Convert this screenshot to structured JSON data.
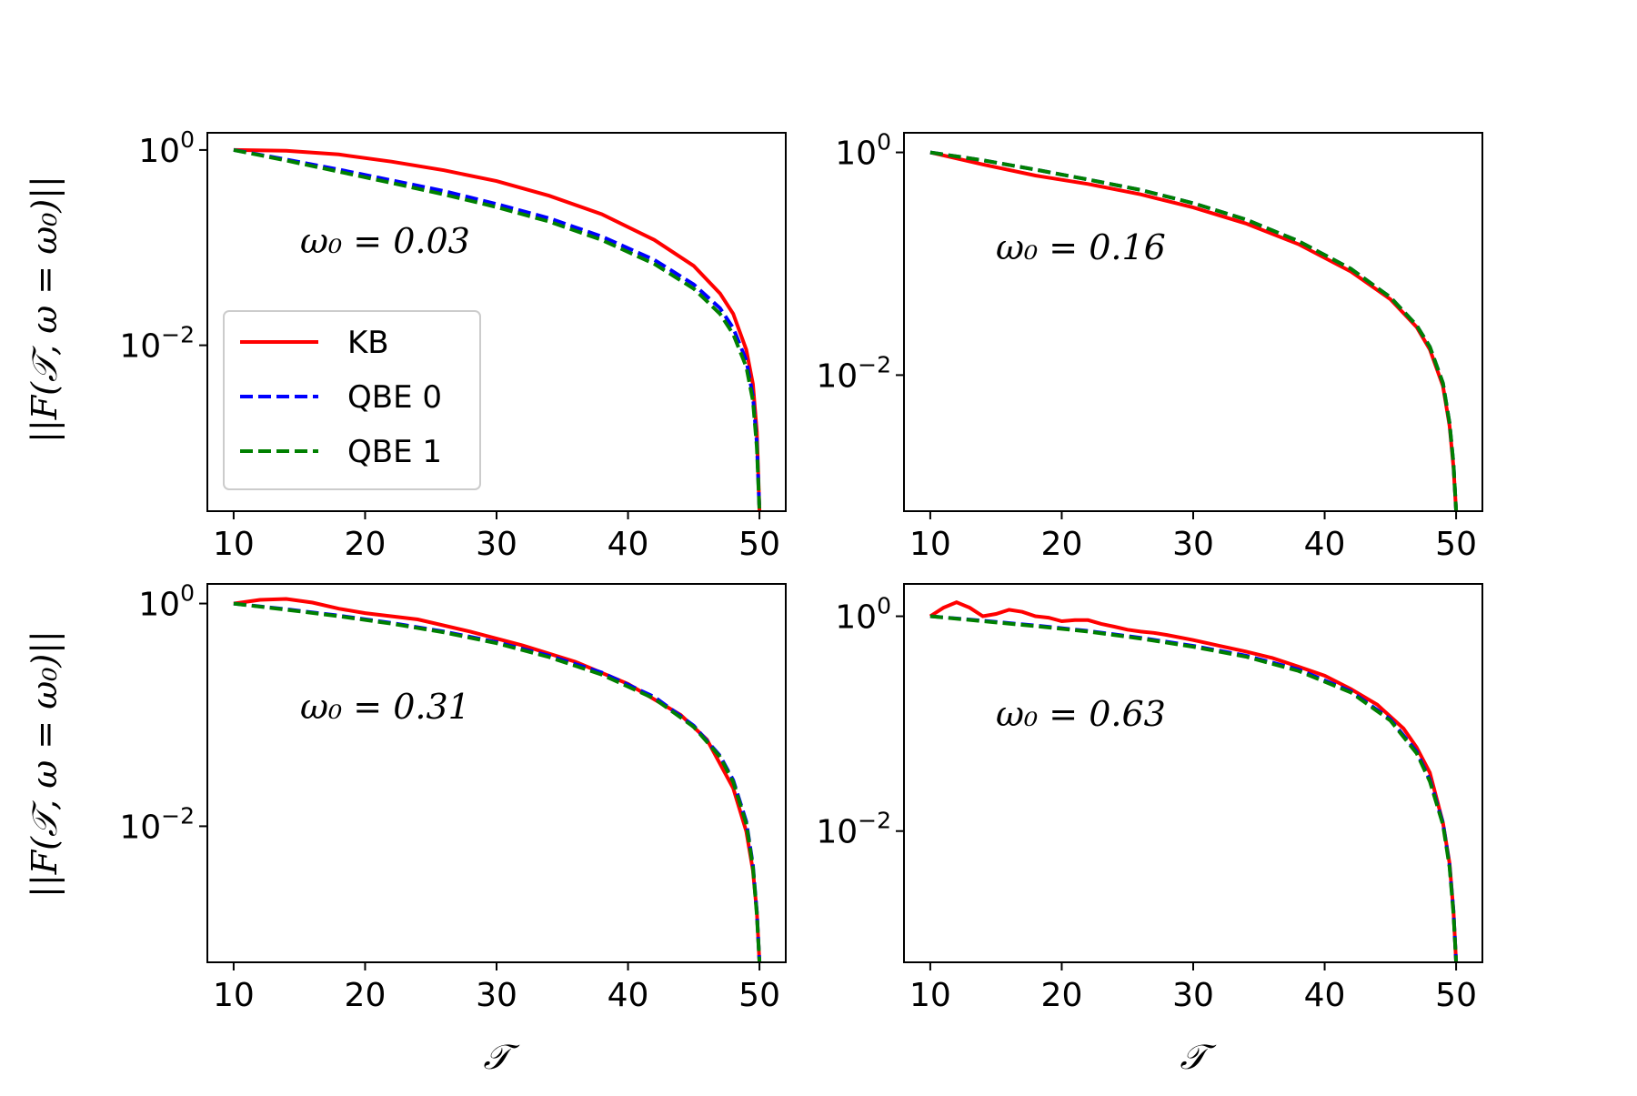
{
  "figure": {
    "ylabel_left": "||F(𝒯, ω = ω₀)||",
    "xlabel_bottom": "𝒯",
    "legend": [
      {
        "label": "KB",
        "color": "#ff0000",
        "dash": "solid"
      },
      {
        "label": "QBE 0",
        "color": "#0000ff",
        "dash": "dashed"
      },
      {
        "label": "QBE 1",
        "color": "#008000",
        "dash": "dashed"
      }
    ]
  },
  "chart_data": [
    {
      "type": "line",
      "panel": "top-left",
      "annotation": "ω₀ = 0.03",
      "x_scale": "linear",
      "y_scale": "log",
      "xlim": [
        8,
        52
      ],
      "ylim": [
        0.0002,
        1.5
      ],
      "x_ticks": [
        10,
        20,
        30,
        40,
        50
      ],
      "y_ticks": [
        {
          "value": 1,
          "base": "10",
          "exp": "0"
        },
        {
          "value": 0.01,
          "base": "10",
          "exp": "−2"
        }
      ],
      "legend_position": "lower-left",
      "series": [
        {
          "name": "KB",
          "color": "#ff0000",
          "dash": "solid",
          "x": [
            10,
            14,
            18,
            22,
            26,
            30,
            34,
            38,
            42,
            45,
            47,
            48,
            49,
            49.5,
            49.8,
            50
          ],
          "y": [
            1,
            0.98,
            0.9,
            0.76,
            0.62,
            0.48,
            0.34,
            0.22,
            0.12,
            0.065,
            0.034,
            0.021,
            0.009,
            0.004,
            0.0013,
            0.0002
          ]
        },
        {
          "name": "QBE 0",
          "color": "#0000ff",
          "dash": "dashed",
          "x": [
            10,
            14,
            18,
            22,
            26,
            30,
            34,
            38,
            42,
            45,
            47,
            48,
            49,
            49.5,
            49.8,
            50
          ],
          "y": [
            1,
            0.8,
            0.63,
            0.49,
            0.38,
            0.28,
            0.2,
            0.13,
            0.075,
            0.042,
            0.024,
            0.015,
            0.007,
            0.003,
            0.001,
            0.0002
          ]
        },
        {
          "name": "QBE 1",
          "color": "#008000",
          "dash": "dashed",
          "x": [
            10,
            14,
            18,
            22,
            26,
            30,
            34,
            38,
            42,
            45,
            47,
            48,
            49,
            49.5,
            49.8,
            50
          ],
          "y": [
            1,
            0.78,
            0.6,
            0.46,
            0.35,
            0.26,
            0.185,
            0.12,
            0.068,
            0.038,
            0.021,
            0.013,
            0.006,
            0.0027,
            0.0009,
            0.0002
          ]
        }
      ]
    },
    {
      "type": "line",
      "panel": "top-right",
      "annotation": "ω₀ = 0.16",
      "x_scale": "linear",
      "y_scale": "log",
      "xlim": [
        8,
        52
      ],
      "ylim": [
        0.0006,
        1.5
      ],
      "x_ticks": [
        10,
        20,
        30,
        40,
        50
      ],
      "y_ticks": [
        {
          "value": 1,
          "base": "10",
          "exp": "0"
        },
        {
          "value": 0.01,
          "base": "10",
          "exp": "−2"
        }
      ],
      "series": [
        {
          "name": "KB",
          "color": "#ff0000",
          "dash": "solid",
          "x": [
            10,
            14,
            18,
            22,
            26,
            30,
            34,
            38,
            42,
            45,
            47,
            48,
            49,
            49.5,
            49.8,
            50
          ],
          "y": [
            1,
            0.78,
            0.62,
            0.52,
            0.42,
            0.32,
            0.23,
            0.15,
            0.085,
            0.048,
            0.027,
            0.017,
            0.008,
            0.0035,
            0.0015,
            0.0006
          ]
        },
        {
          "name": "QBE 0",
          "color": "#0000ff",
          "dash": "dashed",
          "x": [
            10,
            14,
            18,
            22,
            26,
            30,
            34,
            38,
            42,
            45,
            47,
            48,
            49,
            49.5,
            49.8,
            50
          ],
          "y": [
            1,
            0.85,
            0.7,
            0.57,
            0.46,
            0.35,
            0.25,
            0.16,
            0.09,
            0.05,
            0.028,
            0.018,
            0.0085,
            0.0037,
            0.0016,
            0.0006
          ]
        },
        {
          "name": "QBE 1",
          "color": "#008000",
          "dash": "dashed",
          "x": [
            10,
            14,
            18,
            22,
            26,
            30,
            34,
            38,
            42,
            45,
            47,
            48,
            49,
            49.5,
            49.8,
            50
          ],
          "y": [
            1,
            0.85,
            0.7,
            0.57,
            0.46,
            0.35,
            0.25,
            0.16,
            0.09,
            0.05,
            0.028,
            0.018,
            0.0085,
            0.0037,
            0.0016,
            0.0006
          ]
        }
      ]
    },
    {
      "type": "line",
      "panel": "bottom-left",
      "annotation": "ω₀ = 0.31",
      "x_scale": "linear",
      "y_scale": "log",
      "xlim": [
        8,
        52
      ],
      "ylim": [
        0.0006,
        1.5
      ],
      "x_ticks": [
        10,
        20,
        30,
        40,
        50
      ],
      "y_ticks": [
        {
          "value": 1,
          "base": "10",
          "exp": "0"
        },
        {
          "value": 0.01,
          "base": "10",
          "exp": "−2"
        }
      ],
      "series": [
        {
          "name": "KB",
          "color": "#ff0000",
          "dash": "solid",
          "x": [
            10,
            12,
            14,
            16,
            18,
            20,
            24,
            28,
            32,
            36,
            40,
            44,
            46,
            48,
            49,
            49.5,
            49.8,
            50
          ],
          "y": [
            1,
            1.08,
            1.1,
            1.02,
            0.9,
            0.82,
            0.72,
            0.56,
            0.42,
            0.3,
            0.19,
            0.1,
            0.06,
            0.022,
            0.009,
            0.004,
            0.0017,
            0.0006
          ]
        },
        {
          "name": "QBE 0",
          "color": "#0000ff",
          "dash": "dashed",
          "x": [
            10,
            14,
            18,
            22,
            26,
            30,
            34,
            38,
            42,
            45,
            47,
            48,
            49,
            49.5,
            49.8,
            50
          ],
          "y": [
            1,
            0.89,
            0.78,
            0.67,
            0.56,
            0.45,
            0.34,
            0.24,
            0.145,
            0.08,
            0.043,
            0.026,
            0.011,
            0.0045,
            0.0017,
            0.0006
          ]
        },
        {
          "name": "QBE 1",
          "color": "#008000",
          "dash": "dashed",
          "x": [
            10,
            14,
            18,
            22,
            26,
            30,
            34,
            38,
            42,
            45,
            47,
            48,
            49,
            49.5,
            49.8,
            50
          ],
          "y": [
            1,
            0.88,
            0.77,
            0.66,
            0.55,
            0.44,
            0.33,
            0.23,
            0.14,
            0.078,
            0.042,
            0.025,
            0.0105,
            0.0043,
            0.0016,
            0.0006
          ]
        }
      ]
    },
    {
      "type": "line",
      "panel": "bottom-right",
      "annotation": "ω₀ = 0.63",
      "x_scale": "linear",
      "y_scale": "log",
      "xlim": [
        8,
        52
      ],
      "ylim": [
        0.0006,
        2.0
      ],
      "x_ticks": [
        10,
        20,
        30,
        40,
        50
      ],
      "y_ticks": [
        {
          "value": 1,
          "base": "10",
          "exp": "0"
        },
        {
          "value": 0.01,
          "base": "10",
          "exp": "−2"
        }
      ],
      "series": [
        {
          "name": "KB",
          "color": "#ff0000",
          "dash": "solid",
          "x": [
            10,
            11,
            12,
            13,
            14,
            15,
            16,
            17,
            18,
            19,
            20,
            21,
            22,
            23,
            24,
            25,
            26,
            27,
            28,
            30,
            32,
            34,
            36,
            38,
            40,
            42,
            44,
            46,
            47,
            48,
            49,
            49.5,
            49.8,
            50
          ],
          "y": [
            1,
            1.2,
            1.35,
            1.2,
            1.0,
            1.05,
            1.15,
            1.1,
            1.0,
            0.97,
            0.9,
            0.92,
            0.92,
            0.85,
            0.8,
            0.75,
            0.72,
            0.7,
            0.67,
            0.6,
            0.53,
            0.47,
            0.41,
            0.34,
            0.28,
            0.21,
            0.15,
            0.09,
            0.06,
            0.035,
            0.012,
            0.005,
            0.0018,
            0.0006
          ]
        },
        {
          "name": "QBE 0",
          "color": "#0000ff",
          "dash": "dashed",
          "x": [
            10,
            14,
            18,
            22,
            26,
            30,
            34,
            38,
            42,
            45,
            47,
            48,
            49,
            49.5,
            49.8,
            50
          ],
          "y": [
            1,
            0.91,
            0.82,
            0.73,
            0.63,
            0.53,
            0.43,
            0.32,
            0.2,
            0.11,
            0.055,
            0.03,
            0.012,
            0.0048,
            0.0018,
            0.0006
          ]
        },
        {
          "name": "QBE 1",
          "color": "#008000",
          "dash": "dashed",
          "x": [
            10,
            14,
            18,
            22,
            26,
            30,
            34,
            38,
            42,
            45,
            47,
            48,
            49,
            49.5,
            49.8,
            50
          ],
          "y": [
            1,
            0.9,
            0.81,
            0.72,
            0.62,
            0.52,
            0.42,
            0.31,
            0.195,
            0.107,
            0.053,
            0.029,
            0.0115,
            0.0046,
            0.0017,
            0.0006
          ]
        }
      ]
    }
  ]
}
